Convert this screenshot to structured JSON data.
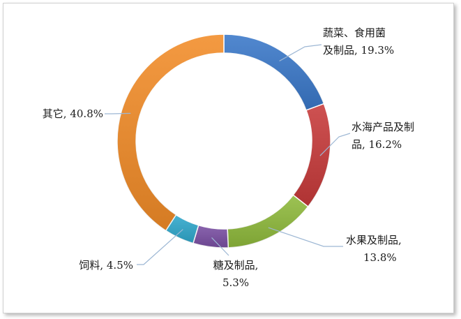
{
  "chart_data": {
    "type": "pie",
    "title": "",
    "legend": "none",
    "slices": [
      {
        "name": "蔬菜、食用菌及制品",
        "value": 19.3,
        "color": "#3a78c9",
        "label_lines": [
          "蔬菜、食用菌",
          "及制品, 19.3%"
        ]
      },
      {
        "name": "水海产品及制品",
        "value": 16.2,
        "color": "#c73a3a",
        "label_lines": [
          "水海产品及制",
          "品, 16.2%"
        ]
      },
      {
        "name": "水果及制品",
        "value": 13.8,
        "color": "#8fba3c",
        "label_lines": [
          "水果及制品,",
          "13.8%"
        ]
      },
      {
        "name": "糖及制品",
        "value": 5.3,
        "color": "#7a4fa3",
        "label_lines": [
          "糖及制品,",
          "5.3%"
        ]
      },
      {
        "name": "饲料",
        "value": 4.5,
        "color": "#2fa8cc",
        "label_lines": [
          "饲料, 4.5%"
        ]
      },
      {
        "name": "其它",
        "value": 40.8,
        "color": "#f28c28",
        "label_lines": [
          "其它, 40.8%"
        ]
      }
    ]
  }
}
